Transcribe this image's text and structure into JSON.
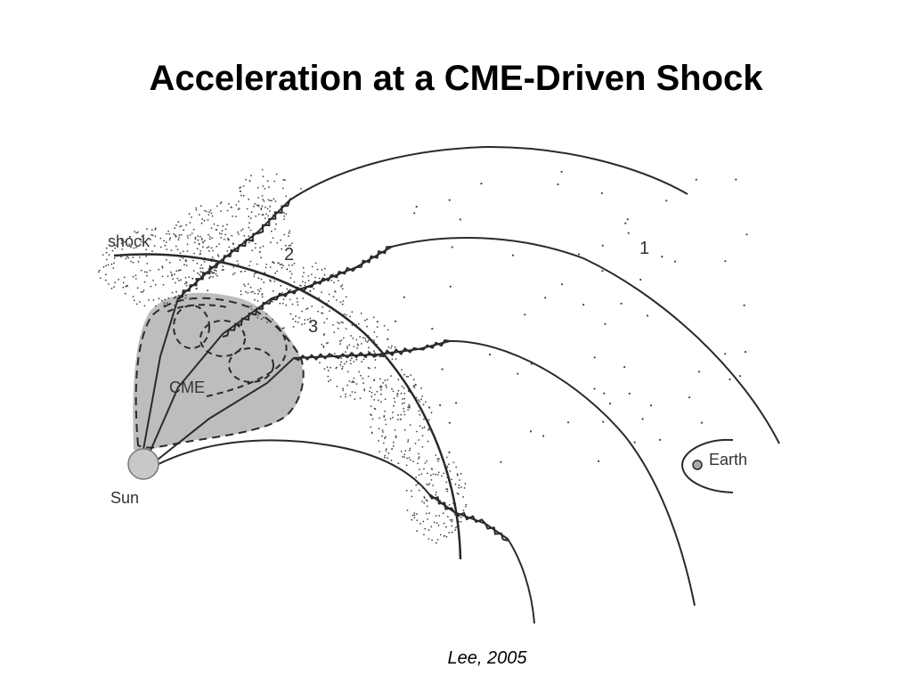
{
  "slide": {
    "title": "Acceleration at a CME-Driven Shock",
    "citation": "Lee, 2005"
  },
  "diagram": {
    "labels": {
      "shock": "shock",
      "cme": "CME",
      "sun": "Sun",
      "earth": "Earth",
      "region_1": "1",
      "region_2": "2",
      "region_3": "3"
    },
    "colors": {
      "line": "#2a2a2a",
      "cme_fill": "#bdbdbd",
      "sun": "#c8c8c8",
      "particles": "#444444"
    }
  }
}
